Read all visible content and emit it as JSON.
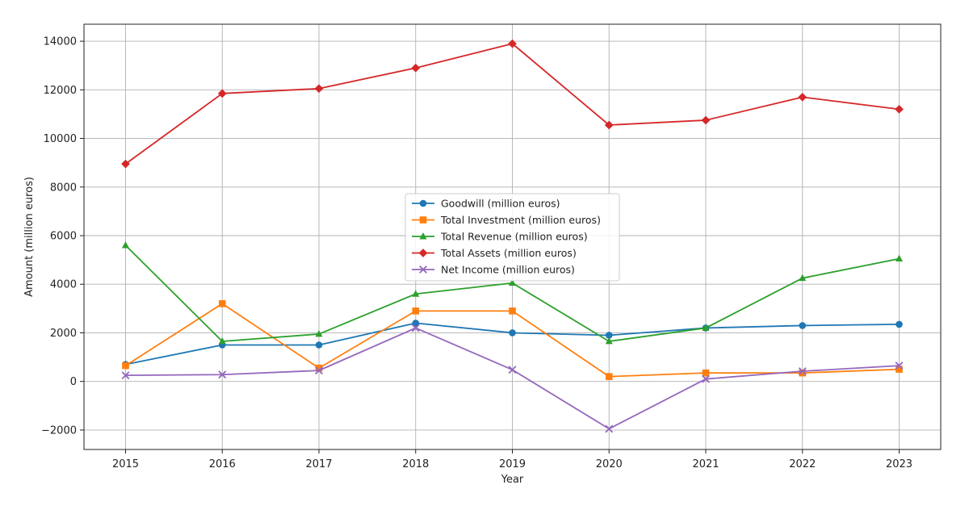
{
  "chart_data": {
    "type": "line",
    "title": "",
    "xlabel": "Year",
    "ylabel": "Amount (million euros)",
    "x": [
      2015,
      2016,
      2017,
      2018,
      2019,
      2020,
      2021,
      2022,
      2023
    ],
    "x_tick_labels": [
      "2015",
      "2016",
      "2017",
      "2018",
      "2019",
      "2020",
      "2021",
      "2022",
      "2023"
    ],
    "ylim": [
      -2800,
      14700
    ],
    "y_ticks": [
      -2000,
      0,
      2000,
      4000,
      6000,
      8000,
      10000,
      12000,
      14000
    ],
    "y_tick_labels": [
      "−2000",
      "0",
      "2000",
      "4000",
      "6000",
      "8000",
      "10000",
      "12000",
      "14000"
    ],
    "grid": true,
    "legend_position": "center",
    "series": [
      {
        "name": "Goodwill (million euros)",
        "color": "#1f77b4",
        "marker": "circle",
        "values": [
          700,
          1500,
          1500,
          2400,
          2000,
          1900,
          2200,
          2300,
          2350
        ]
      },
      {
        "name": "Total Investment (million euros)",
        "color": "#ff7f0e",
        "marker": "square",
        "values": [
          650,
          3200,
          550,
          2900,
          2900,
          200,
          350,
          350,
          500
        ]
      },
      {
        "name": "Total Revenue (million euros)",
        "color": "#2ca02c",
        "marker": "triangle",
        "values": [
          5600,
          1650,
          1950,
          3600,
          4050,
          1650,
          2200,
          4250,
          5050
        ]
      },
      {
        "name": "Total Assets (million euros)",
        "color": "#d62728",
        "marker": "diamond",
        "values": [
          8950,
          11850,
          12050,
          12900,
          13900,
          10550,
          10750,
          11700,
          11200
        ]
      },
      {
        "name": "Net Income (million euros)",
        "color": "#9467bd",
        "marker": "x",
        "values": [
          250,
          280,
          450,
          2200,
          480,
          -1950,
          100,
          420,
          650
        ]
      }
    ]
  }
}
